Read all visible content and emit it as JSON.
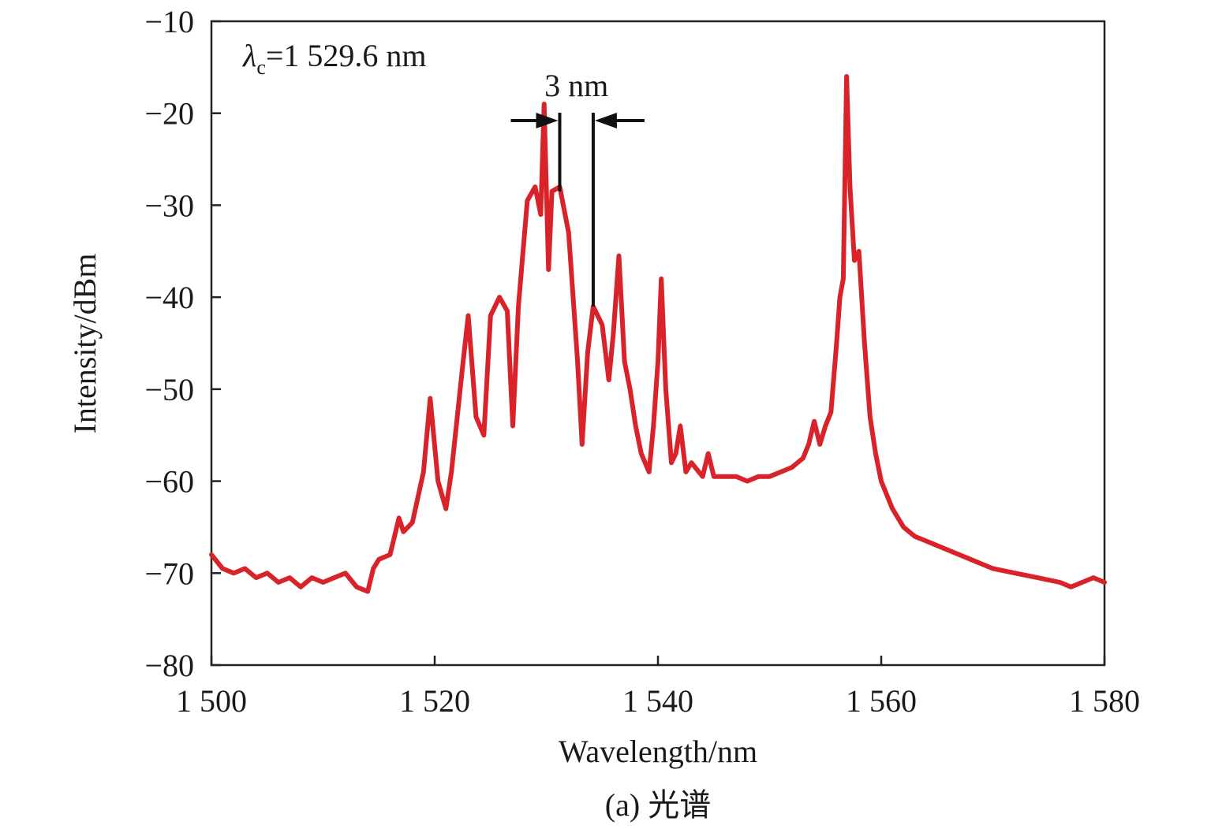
{
  "chart_data": {
    "type": "line",
    "title": "",
    "caption": "(a) 光谱",
    "xlabel": "Wavelength/nm",
    "ylabel": "Intensity/dBm",
    "xlim": [
      1500,
      1580
    ],
    "ylim": [
      -80,
      -10
    ],
    "xticks": [
      1500,
      1520,
      1540,
      1560,
      1580
    ],
    "xtick_labels": [
      "1 500",
      "1 520",
      "1 540",
      "1 560",
      "1 580"
    ],
    "yticks": [
      -80,
      -70,
      -60,
      -50,
      -40,
      -30,
      -20,
      -10
    ],
    "ytick_labels": [
      "−80",
      "−70",
      "−60",
      "−50",
      "−40",
      "−30",
      "−20",
      "−10"
    ],
    "grid": false,
    "series": [
      {
        "color": "#d9232a",
        "x": [
          1500,
          1501,
          1502,
          1503,
          1504,
          1505,
          1506,
          1507,
          1508,
          1509,
          1510,
          1511,
          1512,
          1513,
          1514,
          1514.5,
          1515,
          1516,
          1516.8,
          1517.2,
          1518,
          1519,
          1519.6,
          1520.3,
          1521,
          1521.5,
          1522.5,
          1523,
          1523.7,
          1524.4,
          1525,
          1525.8,
          1526.5,
          1527,
          1527.5,
          1528.3,
          1529,
          1529.5,
          1529.8,
          1530.2,
          1530.5,
          1531.2,
          1532,
          1532.8,
          1533.2,
          1533.7,
          1534.2,
          1535,
          1535.6,
          1536,
          1536.5,
          1537,
          1537.5,
          1538,
          1538.5,
          1539.2,
          1539.6,
          1540,
          1540.3,
          1540.7,
          1541.2,
          1541.6,
          1542,
          1542.5,
          1543,
          1544,
          1544.5,
          1545,
          1547,
          1548,
          1549,
          1550,
          1552,
          1553,
          1553.5,
          1554,
          1554.5,
          1555,
          1555.5,
          1556,
          1556.3,
          1556.6,
          1556.9,
          1557.2,
          1557.6,
          1558,
          1558.5,
          1559,
          1559.5,
          1560,
          1561,
          1562,
          1563,
          1564,
          1565,
          1566,
          1568,
          1570,
          1572,
          1574,
          1576,
          1577,
          1578,
          1579,
          1580
        ],
        "y": [
          -68,
          -69.5,
          -70,
          -69.5,
          -70.5,
          -70,
          -71,
          -70.5,
          -71.5,
          -70.5,
          -71,
          -70.5,
          -70,
          -71.5,
          -72,
          -69.5,
          -68.5,
          -68,
          -64,
          -65.5,
          -64.5,
          -59,
          -51,
          -60,
          -63,
          -59,
          -47.5,
          -42,
          -53,
          -55,
          -42,
          -40,
          -41.5,
          -54,
          -41,
          -29.5,
          -28,
          -31,
          -19,
          -37,
          -28.5,
          -28,
          -33,
          -47,
          -56,
          -46,
          -41,
          -43,
          -49,
          -44,
          -35.5,
          -47,
          -50,
          -54,
          -57,
          -59,
          -54,
          -47,
          -38,
          -50,
          -58,
          -57,
          -54,
          -59,
          -58,
          -59.5,
          -57,
          -59.5,
          -59.5,
          -60,
          -59.5,
          -59.5,
          -58.5,
          -57.5,
          -56,
          -53.5,
          -56,
          -54,
          -52.5,
          -45,
          -40,
          -38,
          -16,
          -28,
          -36,
          -35,
          -45,
          -53,
          -57,
          -60,
          -63,
          -65,
          -66,
          -66.5,
          -67,
          -67.5,
          -68.5,
          -69.5,
          -70,
          -70.5,
          -71,
          -71.5,
          -71,
          -70.5,
          -71
        ]
      }
    ],
    "annotations": [
      {
        "text_main": "λ",
        "text_sub": "c",
        "text_rest": "=1 529.6 nm"
      },
      {
        "text": "3 nm",
        "x_range": [
          1531.2,
          1534.2
        ],
        "y": -20.8
      }
    ]
  }
}
